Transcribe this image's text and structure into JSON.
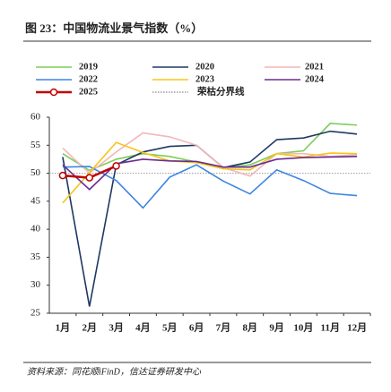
{
  "chart_data": {
    "type": "line",
    "title": "图 23：中国物流业景气指数（%）",
    "source": "资料来源：同花顺iFinD，信达证券研发中心",
    "categories": [
      "1月",
      "2月",
      "3月",
      "4月",
      "5月",
      "6月",
      "7月",
      "8月",
      "9月",
      "10月",
      "11月",
      "12月"
    ],
    "series": [
      {
        "name": "2019",
        "color": "#7ccd5a",
        "values": [
          53.5,
          50.5,
          52.5,
          53.5,
          53.0,
          52.0,
          51.0,
          51.5,
          53.5,
          54.0,
          58.9,
          58.6
        ]
      },
      {
        "name": "2020",
        "color": "#1f3864",
        "values": [
          52.9,
          26.2,
          51.5,
          53.8,
          54.8,
          55.0,
          51.0,
          52.0,
          56.0,
          56.3,
          57.5,
          57.0
        ]
      },
      {
        "name": "2021",
        "color": "#f4b6b8",
        "values": [
          54.5,
          50.0,
          53.8,
          57.2,
          56.5,
          55.0,
          51.0,
          49.5,
          53.5,
          53.5,
          53.0,
          53.3
        ]
      },
      {
        "name": "2022",
        "color": "#3d85e0",
        "values": [
          51.1,
          51.2,
          48.7,
          43.8,
          49.3,
          51.5,
          48.6,
          46.3,
          50.6,
          48.7,
          46.4,
          46.0
        ]
      },
      {
        "name": "2023",
        "color": "#f5c518",
        "values": [
          44.7,
          50.1,
          55.5,
          53.7,
          52.2,
          51.9,
          50.8,
          50.6,
          53.5,
          52.9,
          53.6,
          53.5
        ]
      },
      {
        "name": "2024",
        "color": "#6a2c91",
        "values": [
          51.5,
          47.1,
          51.7,
          52.5,
          52.2,
          52.1,
          51.1,
          51.1,
          52.5,
          52.8,
          52.9,
          53.0
        ]
      },
      {
        "name": "2025",
        "color": "#c00000",
        "markers": true,
        "values": [
          49.6,
          49.2,
          51.3,
          null,
          null,
          null,
          null,
          null,
          null,
          null,
          null,
          null
        ]
      }
    ],
    "reference": {
      "name": "荣枯分界线",
      "value": 50,
      "color": "#999999"
    },
    "ylim": [
      25,
      60
    ],
    "yticks": [
      25,
      30,
      35,
      40,
      45,
      50,
      55,
      60
    ]
  }
}
